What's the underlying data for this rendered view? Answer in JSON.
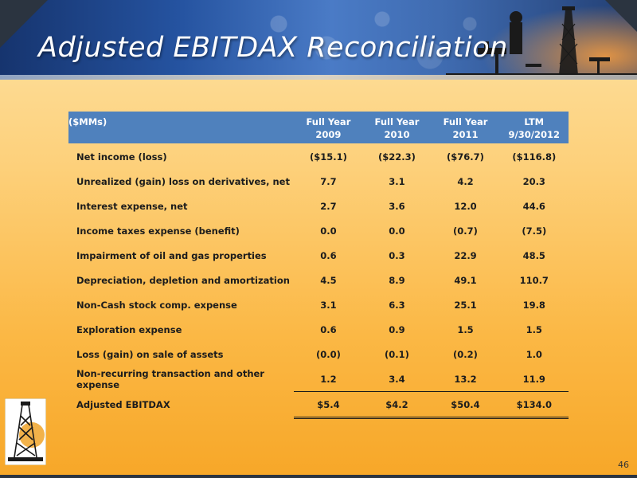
{
  "slide": {
    "title": "Adjusted EBITDAX Reconciliation",
    "page_number": "46"
  },
  "table": {
    "unit_label": "($MMs)",
    "columns": [
      {
        "line1": "Full Year",
        "line2": "2009"
      },
      {
        "line1": "Full Year",
        "line2": "2010"
      },
      {
        "line1": "Full Year",
        "line2": "2011"
      },
      {
        "line1": "LTM",
        "line2": "9/30/2012"
      }
    ],
    "rows": [
      {
        "label": "Net income (loss)",
        "values": [
          "($15.1)",
          "($22.3)",
          "($76.7)",
          "($116.8)"
        ]
      },
      {
        "label": "Unrealized (gain) loss on derivatives, net",
        "values": [
          "7.7",
          "3.1",
          "4.2",
          "20.3"
        ]
      },
      {
        "label": "Interest expense, net",
        "values": [
          "2.7",
          "3.6",
          "12.0",
          "44.6"
        ]
      },
      {
        "label": "Income taxes expense (benefit)",
        "values": [
          "0.0",
          "0.0",
          "(0.7)",
          "(7.5)"
        ]
      },
      {
        "label": "Impairment of oil and gas properties",
        "values": [
          "0.6",
          "0.3",
          "22.9",
          "48.5"
        ]
      },
      {
        "label": "Depreciation, depletion and amortization",
        "values": [
          "4.5",
          "8.9",
          "49.1",
          "110.7"
        ]
      },
      {
        "label": "Non-Cash stock comp. expense",
        "values": [
          "3.1",
          "6.3",
          "25.1",
          "19.8"
        ]
      },
      {
        "label": "Exploration expense",
        "values": [
          "0.6",
          "0.9",
          "1.5",
          "1.5"
        ]
      },
      {
        "label": "Loss (gain) on sale of assets",
        "values": [
          "(0.0)",
          "(0.1)",
          "(0.2)",
          "1.0"
        ]
      },
      {
        "label": "Non-recurring transaction and other expense",
        "values": [
          "1.2",
          "3.4",
          "13.2",
          "11.9"
        ]
      },
      {
        "label": "Adjusted EBITDAX",
        "values": [
          "$5.4",
          "$4.2",
          "$50.4",
          "$134.0"
        ]
      }
    ]
  },
  "colors": {
    "header_fill": "#4f81bd",
    "background_top": "#fde3a6",
    "background_bottom": "#f7a728",
    "banner_blue": "#2553a0"
  },
  "icons": {
    "logo": "oil-derrick-logo-icon",
    "banner_art": "oil-rig-silhouette-icon"
  }
}
